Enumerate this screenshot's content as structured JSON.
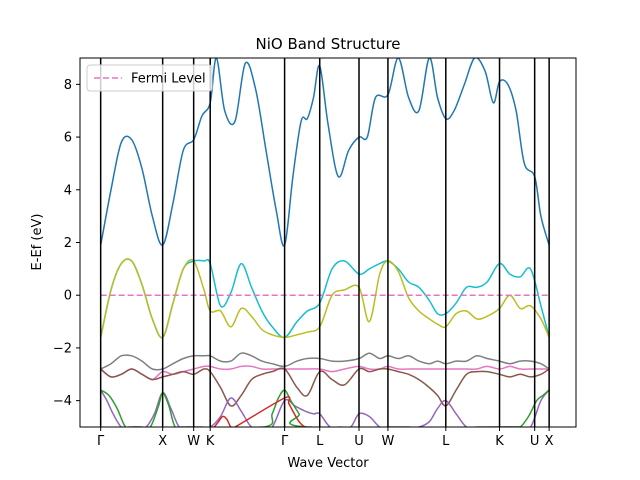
{
  "chart_data": {
    "type": "line",
    "title": "NiO Band Structure",
    "xlabel": "Wave Vector",
    "ylabel": "E-Ef (eV)",
    "ylim": [
      -5,
      9
    ],
    "xlim": [
      0,
      24
    ],
    "yticks": [
      -4,
      -2,
      0,
      2,
      4,
      6,
      8
    ],
    "k_points": [
      {
        "label": "Γ",
        "x": 1.0
      },
      {
        "label": "X",
        "x": 4.0
      },
      {
        "label": "W",
        "x": 5.5
      },
      {
        "label": "K",
        "x": 6.3
      },
      {
        "label": "Γ",
        "x": 9.9
      },
      {
        "label": "L",
        "x": 11.6
      },
      {
        "label": "U",
        "x": 13.5
      },
      {
        "label": "W",
        "x": 14.9
      },
      {
        "label": "L",
        "x": 17.7
      },
      {
        "label": "K",
        "x": 20.3
      },
      {
        "label": "U",
        "x": 22.0
      },
      {
        "label": "X",
        "x": 22.7
      }
    ],
    "fermi_level": {
      "name": "Fermi Level",
      "y": 0,
      "color": "#e377c2"
    },
    "legend": {
      "placement": "top-left"
    },
    "grid": false,
    "series": [
      {
        "color": "#1f77b4",
        "x": [
          1.0,
          1.5,
          2.0,
          2.5,
          3.0,
          3.5,
          4.0,
          4.5,
          5.0,
          5.5,
          5.9,
          6.3,
          6.6,
          7.0,
          7.5,
          8.0,
          8.5,
          9.0,
          9.5,
          9.9,
          10.3,
          10.7,
          11.0,
          11.3,
          11.6,
          12.0,
          12.5,
          13.0,
          13.5,
          13.9,
          14.3,
          14.9,
          15.4,
          15.9,
          16.4,
          16.9,
          17.3,
          17.7,
          18.1,
          18.6,
          19.1,
          19.6,
          20.0,
          20.3,
          20.7,
          21.1,
          21.5,
          22.0,
          22.3,
          22.7
        ],
        "y": [
          1.9,
          4.0,
          5.8,
          5.9,
          4.8,
          3.0,
          1.9,
          3.5,
          5.5,
          5.9,
          6.8,
          7.3,
          9.0,
          7.0,
          6.6,
          8.8,
          7.8,
          5.5,
          3.2,
          1.9,
          4.5,
          6.6,
          6.7,
          7.5,
          8.7,
          6.5,
          4.5,
          5.5,
          6.0,
          6.0,
          7.5,
          7.6,
          9.0,
          7.5,
          7.0,
          9.0,
          7.5,
          6.7,
          7.0,
          8.0,
          9.0,
          8.5,
          7.3,
          8.1,
          8.0,
          7.0,
          5.0,
          4.5,
          3.0,
          1.9
        ]
      },
      {
        "color": "#17becf",
        "x": [
          1.0,
          1.5,
          2.0,
          2.5,
          3.0,
          3.5,
          4.0,
          4.5,
          5.0,
          5.5,
          6.0,
          6.3,
          6.8,
          7.3,
          7.8,
          8.3,
          8.8,
          9.3,
          9.9,
          10.5,
          11.0,
          11.6,
          12.2,
          12.8,
          13.5,
          14.0,
          14.5,
          14.9,
          15.4,
          15.9,
          16.4,
          16.9,
          17.3,
          17.7,
          18.2,
          18.7,
          19.2,
          19.7,
          20.3,
          20.8,
          21.3,
          21.8,
          22.3,
          22.7
        ],
        "y": [
          -1.6,
          0.2,
          1.2,
          1.3,
          0.4,
          -0.9,
          -1.6,
          -0.3,
          1.0,
          1.3,
          1.3,
          1.2,
          -0.4,
          0.1,
          1.2,
          0.3,
          -0.6,
          -1.2,
          -1.6,
          -1.0,
          -0.6,
          -0.3,
          1.0,
          1.3,
          0.8,
          1.0,
          1.2,
          1.3,
          1.0,
          0.5,
          0.3,
          -0.2,
          -0.7,
          -0.7,
          -0.3,
          0.3,
          0.3,
          0.5,
          1.2,
          0.8,
          0.7,
          1.0,
          -0.4,
          -1.6
        ]
      },
      {
        "color": "#bcbd22",
        "x": [
          1.0,
          1.5,
          2.0,
          2.5,
          3.0,
          3.5,
          4.0,
          4.5,
          5.0,
          5.5,
          6.0,
          6.3,
          6.8,
          7.3,
          7.8,
          8.3,
          8.8,
          9.3,
          9.9,
          10.5,
          11.0,
          11.6,
          12.2,
          12.8,
          13.5,
          14.0,
          14.5,
          14.9,
          15.4,
          15.9,
          16.4,
          16.9,
          17.3,
          17.7,
          18.2,
          18.7,
          19.2,
          19.7,
          20.3,
          20.8,
          21.3,
          21.8,
          22.3,
          22.7
        ],
        "y": [
          -1.6,
          0.2,
          1.2,
          1.3,
          0.4,
          -0.9,
          -1.6,
          -0.3,
          1.0,
          1.3,
          0.2,
          -0.6,
          -0.6,
          -1.2,
          -0.5,
          -0.8,
          -1.3,
          -1.5,
          -1.6,
          -1.5,
          -1.4,
          -1.2,
          0.0,
          0.2,
          0.3,
          -1.0,
          0.8,
          1.3,
          0.9,
          -0.1,
          -0.6,
          -0.9,
          -1.1,
          -1.2,
          -0.7,
          -0.6,
          -0.9,
          -0.8,
          -0.5,
          0.0,
          -0.5,
          -0.4,
          -0.9,
          -1.6
        ]
      },
      {
        "color": "#7f7f7f",
        "x": [
          1.0,
          1.5,
          2.0,
          2.5,
          3.0,
          3.5,
          4.0,
          4.5,
          5.0,
          5.5,
          6.0,
          6.3,
          6.8,
          7.3,
          7.8,
          8.3,
          8.8,
          9.3,
          9.9,
          10.5,
          11.0,
          11.6,
          12.2,
          12.8,
          13.5,
          14.0,
          14.5,
          14.9,
          15.4,
          15.9,
          16.4,
          16.9,
          17.3,
          17.7,
          18.2,
          18.7,
          19.2,
          19.7,
          20.3,
          20.8,
          21.3,
          21.8,
          22.3,
          22.7
        ],
        "y": [
          -2.8,
          -2.6,
          -2.3,
          -2.3,
          -2.5,
          -2.8,
          -2.8,
          -2.6,
          -2.4,
          -2.3,
          -2.3,
          -2.3,
          -2.5,
          -2.5,
          -2.2,
          -2.3,
          -2.5,
          -2.6,
          -2.7,
          -2.5,
          -2.4,
          -2.4,
          -2.5,
          -2.5,
          -2.4,
          -2.2,
          -2.4,
          -2.3,
          -2.4,
          -2.3,
          -2.5,
          -2.6,
          -2.5,
          -2.6,
          -2.5,
          -2.5,
          -2.3,
          -2.4,
          -2.5,
          -2.6,
          -2.5,
          -2.5,
          -2.6,
          -2.8
        ]
      },
      {
        "color": "#e377c2",
        "x": [
          1.0,
          1.5,
          2.0,
          2.5,
          3.0,
          3.5,
          4.0,
          4.5,
          5.0,
          5.5,
          6.0,
          6.3,
          6.8,
          7.3,
          7.8,
          8.3,
          8.8,
          9.3,
          9.9,
          10.5,
          11.0,
          11.6,
          12.2,
          12.8,
          13.5,
          14.0,
          14.5,
          14.9,
          15.4,
          15.9,
          16.4,
          16.9,
          17.3,
          17.7,
          18.2,
          18.7,
          19.2,
          19.7,
          20.3,
          20.8,
          21.3,
          21.8,
          22.3,
          22.7
        ],
        "y": [
          -2.8,
          -3.1,
          -3.0,
          -2.8,
          -3.0,
          -3.2,
          -2.9,
          -3.0,
          -2.9,
          -2.8,
          -2.7,
          -2.7,
          -2.8,
          -2.8,
          -2.7,
          -2.7,
          -2.8,
          -2.8,
          -2.8,
          -2.8,
          -2.8,
          -2.8,
          -2.9,
          -2.8,
          -2.7,
          -2.8,
          -2.8,
          -2.7,
          -2.8,
          -2.8,
          -2.8,
          -2.8,
          -2.8,
          -2.8,
          -2.8,
          -2.8,
          -2.8,
          -2.7,
          -2.8,
          -2.7,
          -2.8,
          -2.8,
          -2.8,
          -2.8
        ]
      },
      {
        "color": "#8c564b",
        "x": [
          1.0,
          1.5,
          2.0,
          2.5,
          3.0,
          3.5,
          4.0,
          4.5,
          5.0,
          5.5,
          6.0,
          6.3,
          6.8,
          7.3,
          7.8,
          8.3,
          8.8,
          9.3,
          9.9,
          10.5,
          11.0,
          11.6,
          12.2,
          12.8,
          13.5,
          14.0,
          14.5,
          14.9,
          15.4,
          15.9,
          16.4,
          16.9,
          17.3,
          17.7,
          18.2,
          18.7,
          19.2,
          19.7,
          20.3,
          20.8,
          21.3,
          21.8,
          22.3,
          22.7
        ],
        "y": [
          -2.8,
          -3.1,
          -3.0,
          -2.8,
          -3.0,
          -3.2,
          -3.1,
          -3.0,
          -2.9,
          -3.0,
          -2.8,
          -2.9,
          -3.5,
          -4.2,
          -3.8,
          -3.2,
          -3.0,
          -2.9,
          -2.8,
          -3.5,
          -3.8,
          -2.9,
          -3.2,
          -3.4,
          -2.8,
          -2.9,
          -2.8,
          -2.8,
          -2.9,
          -3.0,
          -3.2,
          -3.5,
          -3.8,
          -4.2,
          -3.6,
          -3.0,
          -2.9,
          -2.9,
          -3.0,
          -3.1,
          -3.0,
          -3.1,
          -3.0,
          -2.8
        ]
      },
      {
        "color": "#9467bd",
        "x": [
          1.0,
          1.3,
          1.6,
          2.0,
          2.4,
          2.8,
          3.2,
          3.6,
          4.0,
          4.4,
          4.8,
          5.2,
          5.5,
          5.9,
          6.3,
          6.8,
          7.3,
          7.8,
          8.3,
          8.8,
          9.3,
          9.9,
          10.4,
          10.9,
          11.3,
          11.6,
          12.1,
          12.6,
          13.1,
          13.5,
          14.0,
          14.5,
          14.9,
          15.4,
          15.9,
          16.4,
          16.9,
          17.3,
          17.7,
          18.2,
          18.7,
          19.2,
          19.7,
          20.3,
          20.8,
          21.3,
          21.8,
          22.3,
          22.7
        ],
        "y": [
          -3.6,
          -4.0,
          -4.5,
          -5.0,
          -5.0,
          -5.0,
          -5.0,
          -4.5,
          -3.7,
          -4.3,
          -5.0,
          -5.0,
          -5.0,
          -5.0,
          -5.0,
          -4.6,
          -3.9,
          -4.4,
          -5.0,
          -5.0,
          -5.0,
          -4.0,
          -4.2,
          -4.4,
          -4.5,
          -4.5,
          -5.0,
          -5.0,
          -5.0,
          -4.5,
          -4.6,
          -5.0,
          -5.0,
          -5.0,
          -5.0,
          -5.0,
          -4.8,
          -4.3,
          -4.0,
          -4.5,
          -5.0,
          -5.0,
          -5.0,
          -5.0,
          -5.0,
          -5.0,
          -5.0,
          -4.0,
          -3.6
        ]
      },
      {
        "color": "#2ca02c",
        "x": [
          1.0,
          1.4,
          1.8,
          2.2,
          2.6,
          3.0,
          3.4,
          3.8,
          4.0,
          4.3,
          4.6,
          5.0,
          8.9,
          9.3,
          9.6,
          9.9,
          10.2,
          10.6,
          11.0,
          20.9,
          21.3,
          21.7,
          22.1,
          22.4,
          22.7
        ],
        "y": [
          -3.6,
          -3.8,
          -4.3,
          -5.0,
          -5.0,
          -5.0,
          -5.0,
          -4.2,
          -3.7,
          -4.2,
          -5.0,
          -5.0,
          -5.0,
          -4.5,
          -3.9,
          -3.6,
          -4.0,
          -4.5,
          -5.0,
          -5.0,
          -5.0,
          -4.6,
          -4.0,
          -3.8,
          -3.6
        ]
      },
      {
        "color": "#d62728",
        "x": [
          6.5,
          6.7,
          6.9,
          7.1,
          7.3,
          7.5,
          9.9,
          10.1,
          10.3,
          10.6,
          10.9,
          11.2
        ],
        "y": [
          -5.0,
          -4.8,
          -4.6,
          -4.7,
          -5.0,
          -5.0,
          -3.9,
          -4.1,
          -4.4,
          -4.8,
          -5.0,
          -5.0
        ]
      }
    ]
  }
}
